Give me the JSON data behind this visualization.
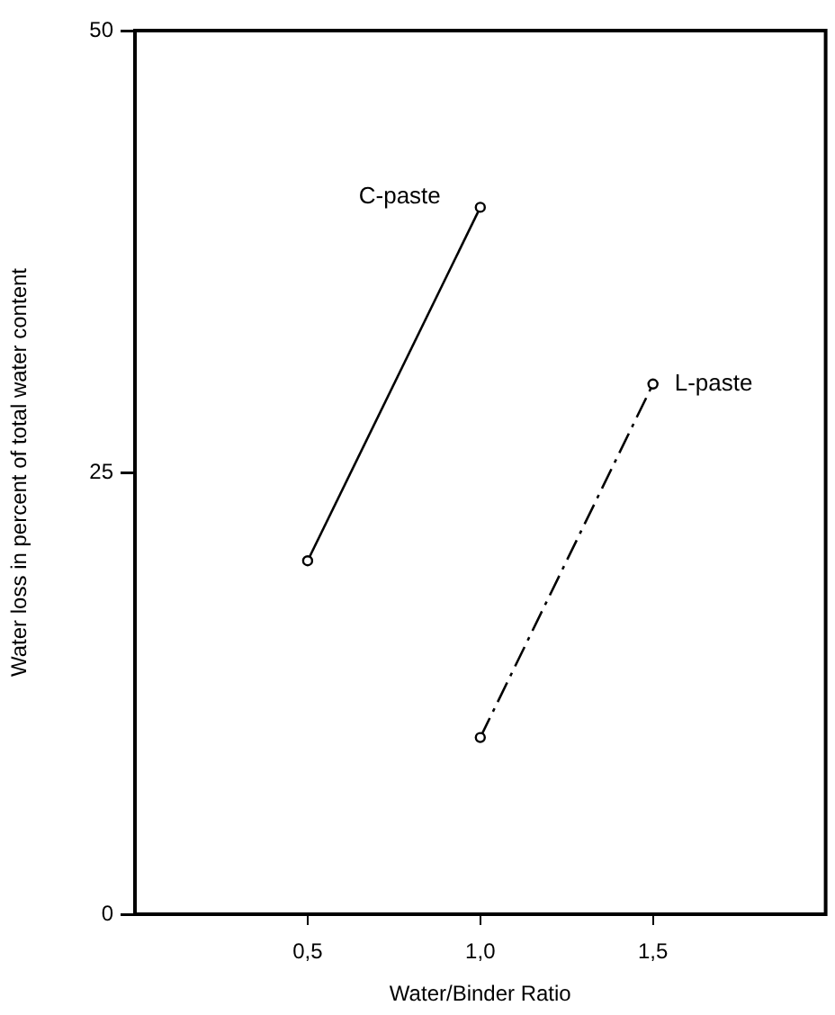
{
  "chart_data": {
    "type": "line",
    "xlabel": "Water/Binder Ratio",
    "ylabel": "Water loss in percent of total water content",
    "xlim": [
      0,
      2
    ],
    "xticks": [
      {
        "value": 0.5,
        "label": "0,5"
      },
      {
        "value": 1,
        "label": "1,0"
      },
      {
        "value": 1.5,
        "label": "1,5"
      }
    ],
    "ylim": [
      0,
      50
    ],
    "yticks": [
      0,
      25,
      50
    ],
    "grid": false,
    "legend": false,
    "marker": "circle",
    "series": [
      {
        "name": "C-paste",
        "color": "#000000",
        "x": [
          0.5,
          1
        ],
        "values": [
          20,
          40
        ],
        "line_style": "solid"
      },
      {
        "name": "L-paste",
        "color": "#000000",
        "x": [
          1,
          1.5
        ],
        "values": [
          10,
          30
        ],
        "line_style": "dashed"
      }
    ]
  }
}
